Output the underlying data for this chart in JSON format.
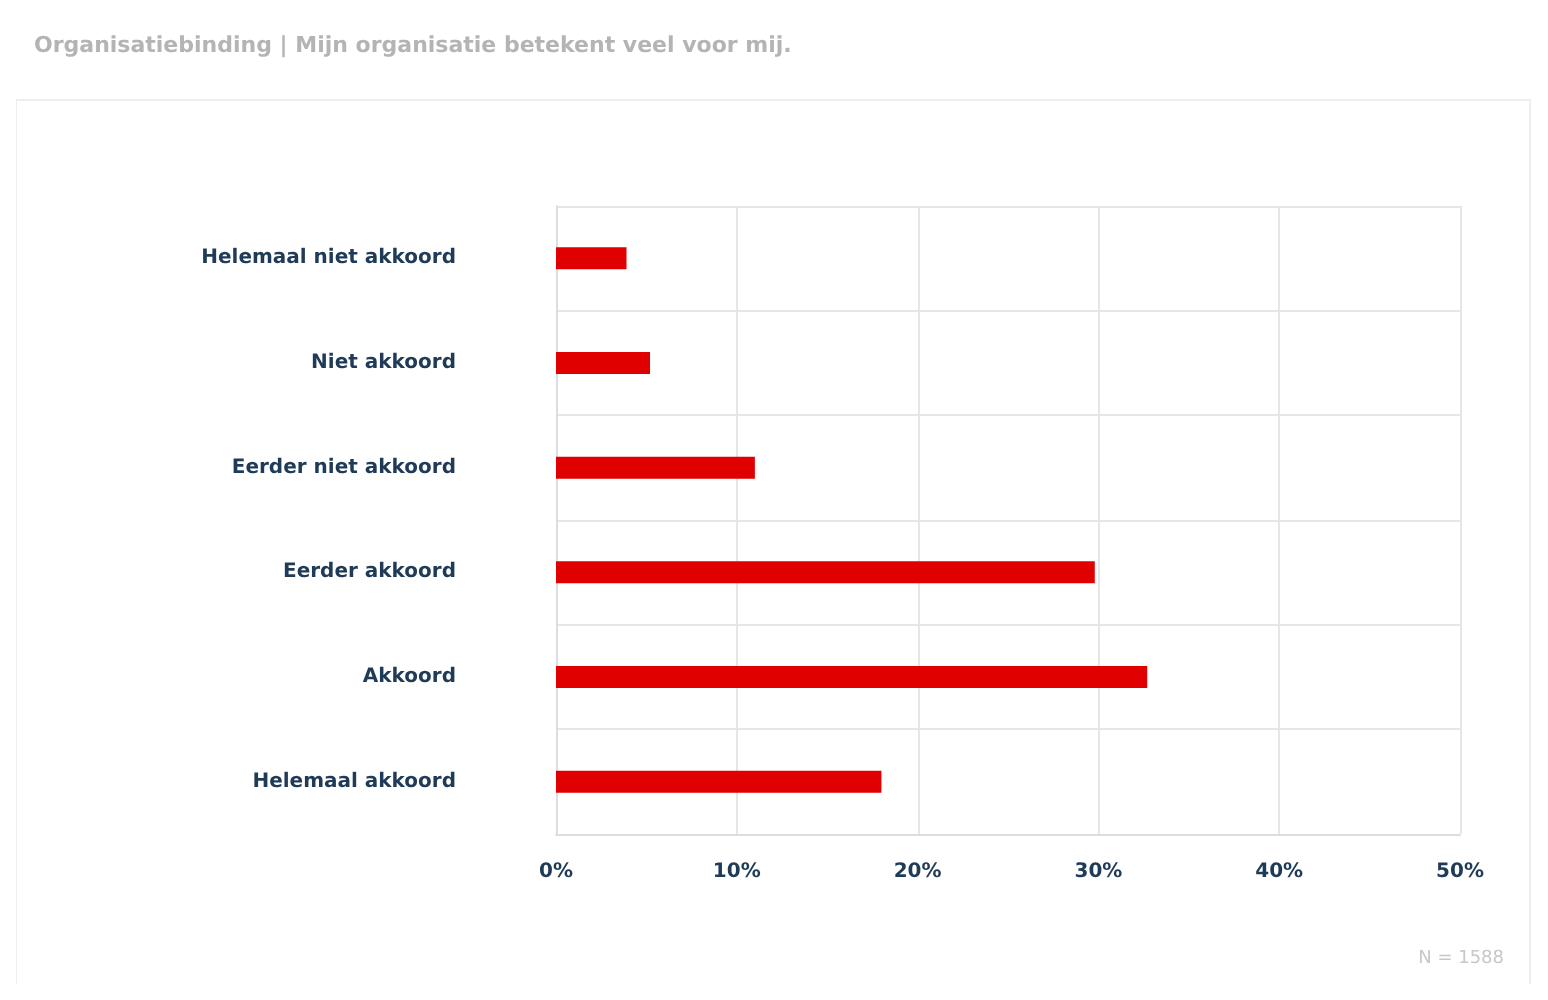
{
  "chart_data": {
    "type": "bar",
    "orientation": "horizontal",
    "title": "Organisatiebinding | Mijn organisatie betekent veel voor mij.",
    "categories": [
      "Helemaal niet akkoord",
      "Niet akkoord",
      "Eerder niet akkoord",
      "Eerder akkoord",
      "Akkoord",
      "Helemaal akkoord"
    ],
    "values": [
      3.9,
      5.2,
      11.0,
      29.8,
      32.7,
      18.0
    ],
    "color": "#e00000",
    "xlim": [
      0,
      50
    ],
    "xticks": [
      {
        "value": 0,
        "label": "0%"
      },
      {
        "value": 10,
        "label": "10%"
      },
      {
        "value": 20,
        "label": "20%"
      },
      {
        "value": 30,
        "label": "30%"
      },
      {
        "value": 40,
        "label": "40%"
      },
      {
        "value": 50,
        "label": "50%"
      }
    ],
    "grid": true,
    "annotations": [
      "N = 1588"
    ]
  }
}
